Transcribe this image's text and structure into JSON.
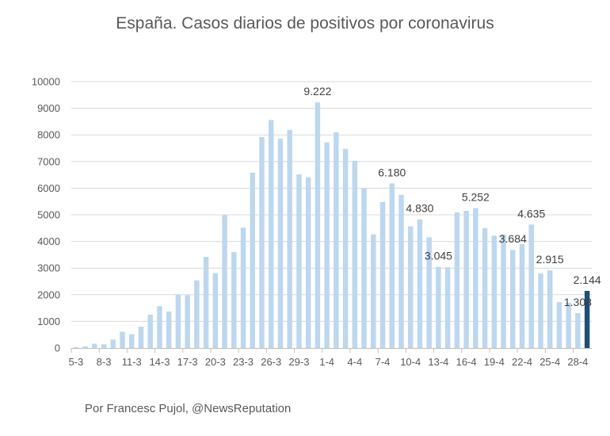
{
  "chart_data": {
    "type": "bar",
    "title": "España. Casos diarios de positivos por coronavirus",
    "xlabel": "",
    "ylabel": "",
    "ylim": [
      0,
      10000
    ],
    "yticks": [
      "0",
      "1000",
      "2000",
      "3000",
      "4000",
      "5000",
      "6000",
      "7000",
      "8000",
      "9000",
      "10000"
    ],
    "grid": true,
    "legend": "none",
    "colors": {
      "bar": "#bdd7ee",
      "highlight": "#1f4e79",
      "grid": "#d9d9d9",
      "axis": "#bfbfbf"
    },
    "categories": [
      "5-3",
      "6-3",
      "7-3",
      "8-3",
      "9-3",
      "10-3",
      "11-3",
      "12-3",
      "13-3",
      "14-3",
      "15-3",
      "16-3",
      "17-3",
      "18-3",
      "19-3",
      "20-3",
      "21-3",
      "22-3",
      "23-3",
      "24-3",
      "25-3",
      "26-3",
      "27-3",
      "28-3",
      "29-3",
      "30-3",
      "31-3",
      "1-4",
      "2-4",
      "3-4",
      "4-4",
      "5-4",
      "6-4",
      "7-4",
      "8-4",
      "9-4",
      "10-4",
      "11-4",
      "12-4",
      "13-4",
      "14-4",
      "15-4",
      "16-4",
      "17-4",
      "18-4",
      "19-4",
      "20-4",
      "21-4",
      "22-4",
      "23-4",
      "24-4",
      "25-4",
      "26-4",
      "27-4",
      "28-4",
      "29-4"
    ],
    "x_tick_labels": [
      "5-3",
      "",
      "",
      "8-3",
      "",
      "",
      "11-3",
      "",
      "",
      "14-3",
      "",
      "",
      "17-3",
      "",
      "",
      "20-3",
      "",
      "",
      "23-3",
      "",
      "",
      "26-3",
      "",
      "",
      "29-3",
      "",
      "",
      "1-4",
      "",
      "",
      "4-4",
      "",
      "",
      "7-4",
      "",
      "",
      "10-4",
      "",
      "",
      "13-4",
      "",
      "",
      "16-4",
      "",
      "",
      "19-4",
      "",
      "",
      "22-4",
      "",
      "",
      "25-4",
      "",
      "",
      "28-4",
      ""
    ],
    "values": [
      30,
      60,
      160,
      140,
      320,
      610,
      520,
      800,
      1250,
      1570,
      1370,
      2000,
      1980,
      2540,
      3420,
      2810,
      4990,
      3600,
      4520,
      6580,
      7920,
      8560,
      7860,
      8190,
      6520,
      6400,
      9222,
      7720,
      8100,
      7480,
      7030,
      6000,
      4270,
      5480,
      6180,
      5750,
      4570,
      4830,
      4160,
      3045,
      3030,
      5090,
      5150,
      5252,
      4500,
      4220,
      4260,
      3684,
      3900,
      4635,
      2800,
      2915,
      1720,
      1700,
      1308,
      2144
    ],
    "highlight_index": 55,
    "data_labels": [
      {
        "index": 26,
        "text": "9.222"
      },
      {
        "index": 34,
        "text": "6.180"
      },
      {
        "index": 37,
        "text": "4.830"
      },
      {
        "index": 39,
        "text": "3.045"
      },
      {
        "index": 43,
        "text": "5.252"
      },
      {
        "index": 47,
        "text": "3.684"
      },
      {
        "index": 49,
        "text": "4.635"
      },
      {
        "index": 51,
        "text": "2.915"
      },
      {
        "index": 54,
        "text": "1.308"
      },
      {
        "index": 55,
        "text": "2.144"
      }
    ]
  },
  "footer": {
    "credit": "Por Francesc Pujol, @NewsReputation"
  }
}
